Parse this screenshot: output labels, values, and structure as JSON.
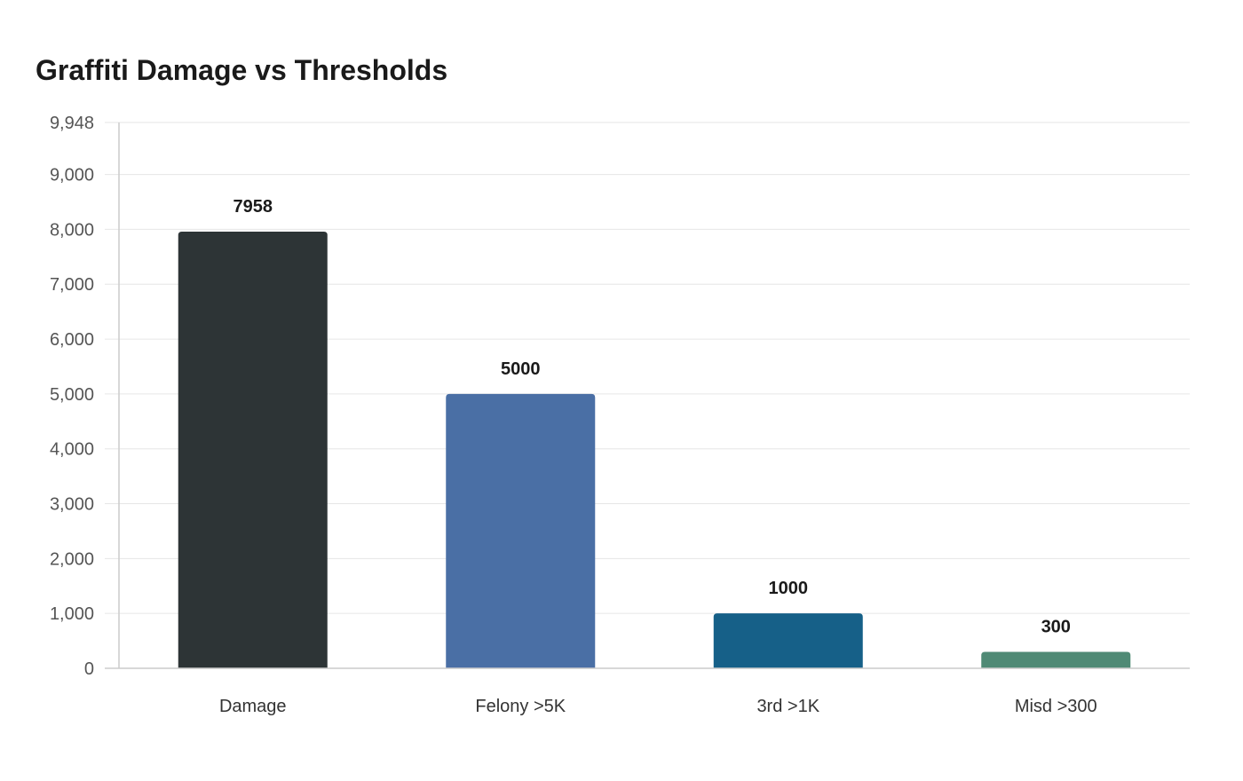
{
  "chart_data": {
    "type": "bar",
    "title": "Graffiti Damage vs Thresholds",
    "xlabel": "",
    "ylabel": "",
    "categories": [
      "Damage",
      "Felony >5K",
      "3rd >1K",
      "Misd >300"
    ],
    "values": [
      7958,
      5000,
      1000,
      300
    ],
    "data_labels": [
      "7958",
      "5000",
      "1000",
      "300"
    ],
    "colors": [
      "#2d3436",
      "#4a6fa5",
      "#166088",
      "#4f8a75"
    ],
    "ylim": [
      0,
      9948
    ],
    "yticks": [
      0,
      1000,
      2000,
      3000,
      4000,
      5000,
      6000,
      7000,
      8000,
      9000,
      9948
    ],
    "ytick_labels": [
      "0",
      "1,000",
      "2,000",
      "3,000",
      "4,000",
      "5,000",
      "6,000",
      "7,000",
      "8,000",
      "9,000",
      "9,948"
    ],
    "grid": true,
    "legend": "none"
  }
}
